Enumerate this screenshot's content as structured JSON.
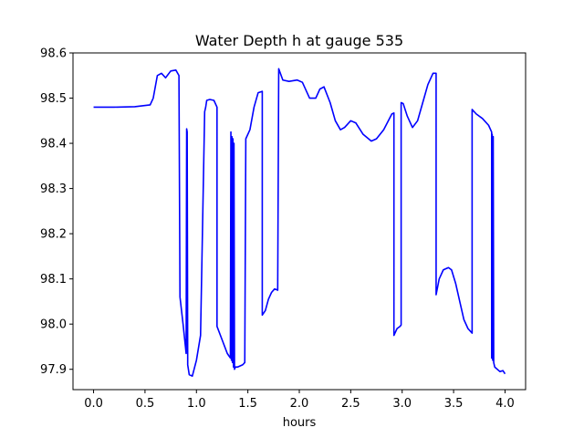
{
  "chart_data": {
    "type": "line",
    "title": "Water Depth h at gauge 535",
    "xlabel": "hours",
    "ylabel": "",
    "xlim": [
      -0.2,
      4.2
    ],
    "ylim": [
      97.855,
      98.6
    ],
    "xticks": [
      0.0,
      0.5,
      1.0,
      1.5,
      2.0,
      2.5,
      3.0,
      3.5,
      4.0
    ],
    "xtick_labels": [
      "0.0",
      "0.5",
      "1.0",
      "1.5",
      "2.0",
      "2.5",
      "3.0",
      "3.5",
      "4.0"
    ],
    "yticks": [
      97.9,
      98.0,
      98.1,
      98.2,
      98.3,
      98.4,
      98.5,
      98.6
    ],
    "ytick_labels": [
      "97.9",
      "98.0",
      "98.1",
      "98.2",
      "98.3",
      "98.4",
      "98.5",
      "98.6"
    ],
    "grid": false,
    "series": [
      {
        "color": "#0000ff",
        "x": [
          0.0,
          0.2,
          0.4,
          0.55,
          0.58,
          0.62,
          0.66,
          0.7,
          0.75,
          0.8,
          0.83,
          0.84,
          0.84,
          0.87,
          0.9,
          0.905,
          0.91,
          0.915,
          0.915,
          0.93,
          0.96,
          1.0,
          1.04,
          1.08,
          1.09,
          1.1,
          1.13,
          1.17,
          1.2,
          1.2,
          1.25,
          1.3,
          1.33,
          1.335,
          1.34,
          1.345,
          1.35,
          1.355,
          1.36,
          1.365,
          1.37,
          1.38,
          1.4,
          1.45,
          1.47,
          1.48,
          1.48,
          1.52,
          1.56,
          1.6,
          1.64,
          1.64,
          1.67,
          1.7,
          1.73,
          1.76,
          1.79,
          1.8,
          1.8,
          1.84,
          1.9,
          1.98,
          2.03,
          2.1,
          2.16,
          2.2,
          2.24,
          2.3,
          2.35,
          2.4,
          2.44,
          2.5,
          2.55,
          2.62,
          2.7,
          2.75,
          2.82,
          2.9,
          2.92,
          2.92,
          2.95,
          2.98,
          2.99,
          2.99,
          3.01,
          3.05,
          3.1,
          3.15,
          3.2,
          3.25,
          3.3,
          3.33,
          3.33,
          3.36,
          3.4,
          3.45,
          3.48,
          3.52,
          3.56,
          3.6,
          3.64,
          3.68,
          3.68,
          3.72,
          3.78,
          3.84,
          3.87,
          3.87,
          3.875,
          3.88,
          3.885,
          3.89,
          3.9,
          3.95,
          3.98,
          4.0
        ],
        "y": [
          98.48,
          98.48,
          98.481,
          98.485,
          98.5,
          98.55,
          98.555,
          98.545,
          98.56,
          98.562,
          98.55,
          98.06,
          98.06,
          98.0,
          97.935,
          98.432,
          98.425,
          97.925,
          97.91,
          97.888,
          97.885,
          97.92,
          97.975,
          98.47,
          98.48,
          98.495,
          98.497,
          98.495,
          98.48,
          97.995,
          97.965,
          97.935,
          97.925,
          98.425,
          97.92,
          98.415,
          97.915,
          98.41,
          97.905,
          98.4,
          97.9,
          97.905,
          97.905,
          97.91,
          97.915,
          98.41,
          98.41,
          98.43,
          98.48,
          98.512,
          98.515,
          98.02,
          98.03,
          98.055,
          98.07,
          98.078,
          98.075,
          98.565,
          98.565,
          98.54,
          98.537,
          98.54,
          98.535,
          98.5,
          98.5,
          98.52,
          98.525,
          98.49,
          98.45,
          98.43,
          98.435,
          98.45,
          98.445,
          98.42,
          98.405,
          98.41,
          98.43,
          98.465,
          98.467,
          97.975,
          97.99,
          97.995,
          97.998,
          98.49,
          98.488,
          98.46,
          98.435,
          98.45,
          98.49,
          98.53,
          98.555,
          98.555,
          98.065,
          98.1,
          98.12,
          98.125,
          98.12,
          98.09,
          98.05,
          98.01,
          97.99,
          97.98,
          98.475,
          98.465,
          98.455,
          98.44,
          98.425,
          97.925,
          98.42,
          97.92,
          98.415,
          97.915,
          97.905,
          97.895,
          97.897,
          97.89
        ]
      }
    ]
  }
}
